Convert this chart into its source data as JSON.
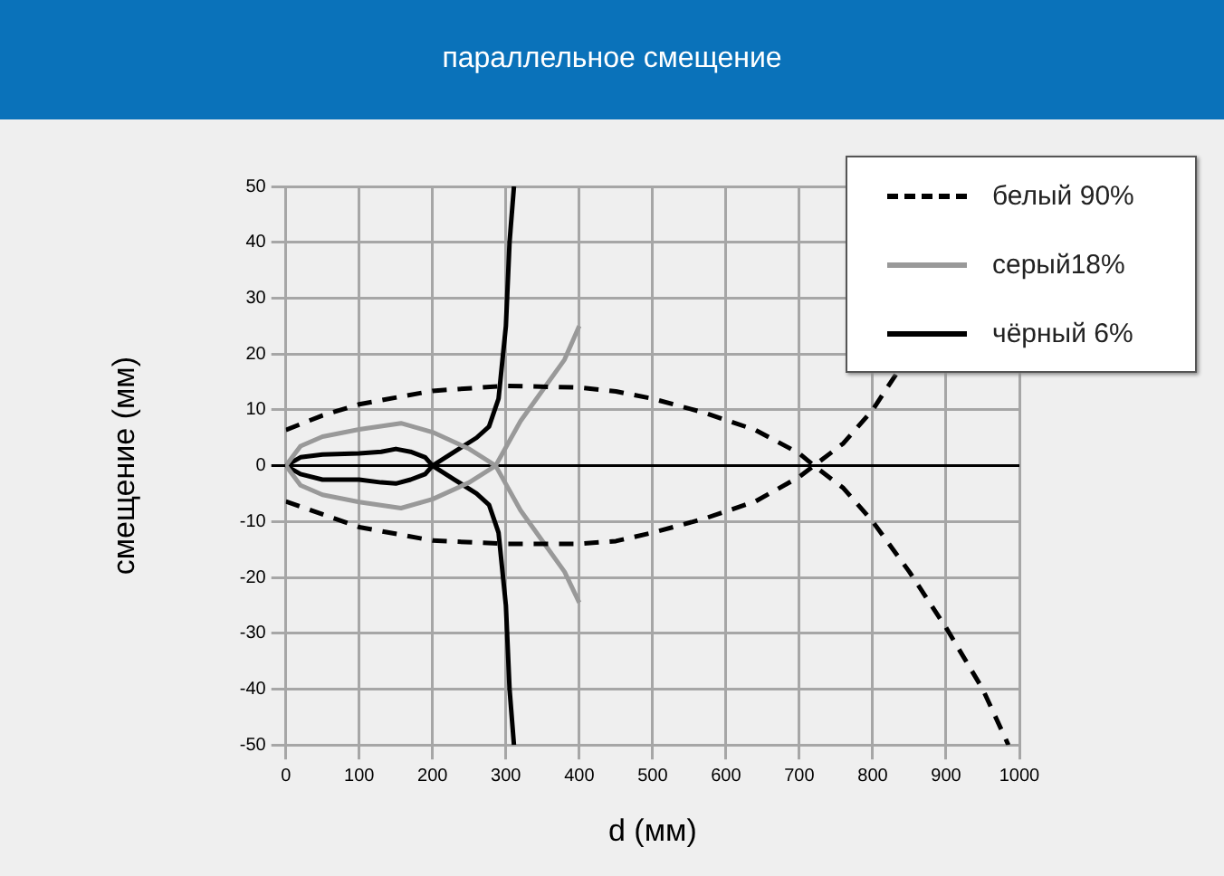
{
  "chart_data": {
    "type": "line",
    "title": "параллельное смещение",
    "xlabel": "d (мм)",
    "ylabel": "смещение (мм)",
    "xlim": [
      0,
      1000
    ],
    "xticks": [
      0,
      100,
      200,
      300,
      400,
      500,
      600,
      700,
      800,
      900,
      1000
    ],
    "ylim": [
      -50,
      50
    ],
    "yticks": [
      -50,
      -40,
      -30,
      -20,
      -10,
      0,
      10,
      20,
      30,
      40,
      50
    ],
    "grid": true,
    "legend": "top right",
    "marker": "none",
    "series": [
      {
        "name": "белый 90%",
        "color": "#000000",
        "line_style": "dashed",
        "x": [
          0,
          50,
          100,
          200,
          300,
          400,
          450,
          500,
          570,
          640,
          700,
          720,
          760,
          800,
          850,
          900,
          950,
          985,
          null,
          0,
          100,
          200,
          300,
          400,
          450,
          500,
          570,
          640,
          700,
          720,
          760,
          800,
          835
        ],
        "values": [
          6.4,
          9,
          11,
          13.4,
          14.3,
          14,
          13.3,
          12,
          9.5,
          6.4,
          2.2,
          0,
          -4,
          -10,
          -19,
          -29,
          -40,
          -50,
          null,
          -6.4,
          -11,
          -13.4,
          -14,
          -14,
          -13.5,
          -12,
          -9.5,
          -6.4,
          -2,
          0,
          4,
          10,
          17
        ]
      },
      {
        "name": "серый18%",
        "color": "#999999",
        "line_style": "solid",
        "x": [
          0,
          20,
          50,
          100,
          157,
          200,
          250,
          286,
          320,
          350,
          380,
          400,
          null,
          0,
          20,
          50,
          100,
          157,
          200,
          250,
          286,
          320,
          350,
          380,
          400
        ],
        "values": [
          0,
          3.5,
          5.2,
          6.5,
          7.6,
          6,
          3,
          0,
          -8,
          -13.5,
          -19,
          -24.5,
          null,
          0,
          -3.5,
          -5.2,
          -6.5,
          -7.6,
          -6,
          -3,
          0,
          8,
          13.5,
          19,
          25
        ]
      },
      {
        "name": "чёрный 6%",
        "color": "#000000",
        "line_style": "solid",
        "x": [
          0,
          20,
          50,
          100,
          130,
          150,
          170,
          190,
          200,
          230,
          260,
          277,
          290,
          300,
          305,
          311,
          null,
          0,
          20,
          50,
          100,
          130,
          150,
          170,
          190,
          200,
          230,
          260,
          277,
          290,
          300,
          305,
          311
        ],
        "values": [
          0,
          1.5,
          2,
          2.2,
          2.5,
          3,
          2.5,
          1.5,
          0,
          2.5,
          5,
          7,
          12,
          25,
          40,
          50,
          null,
          0,
          -1.5,
          -2.5,
          -2.5,
          -3,
          -3.2,
          -2.5,
          -1.5,
          0,
          -2.5,
          -5,
          -7,
          -12,
          -25,
          -40,
          -50
        ]
      }
    ]
  }
}
